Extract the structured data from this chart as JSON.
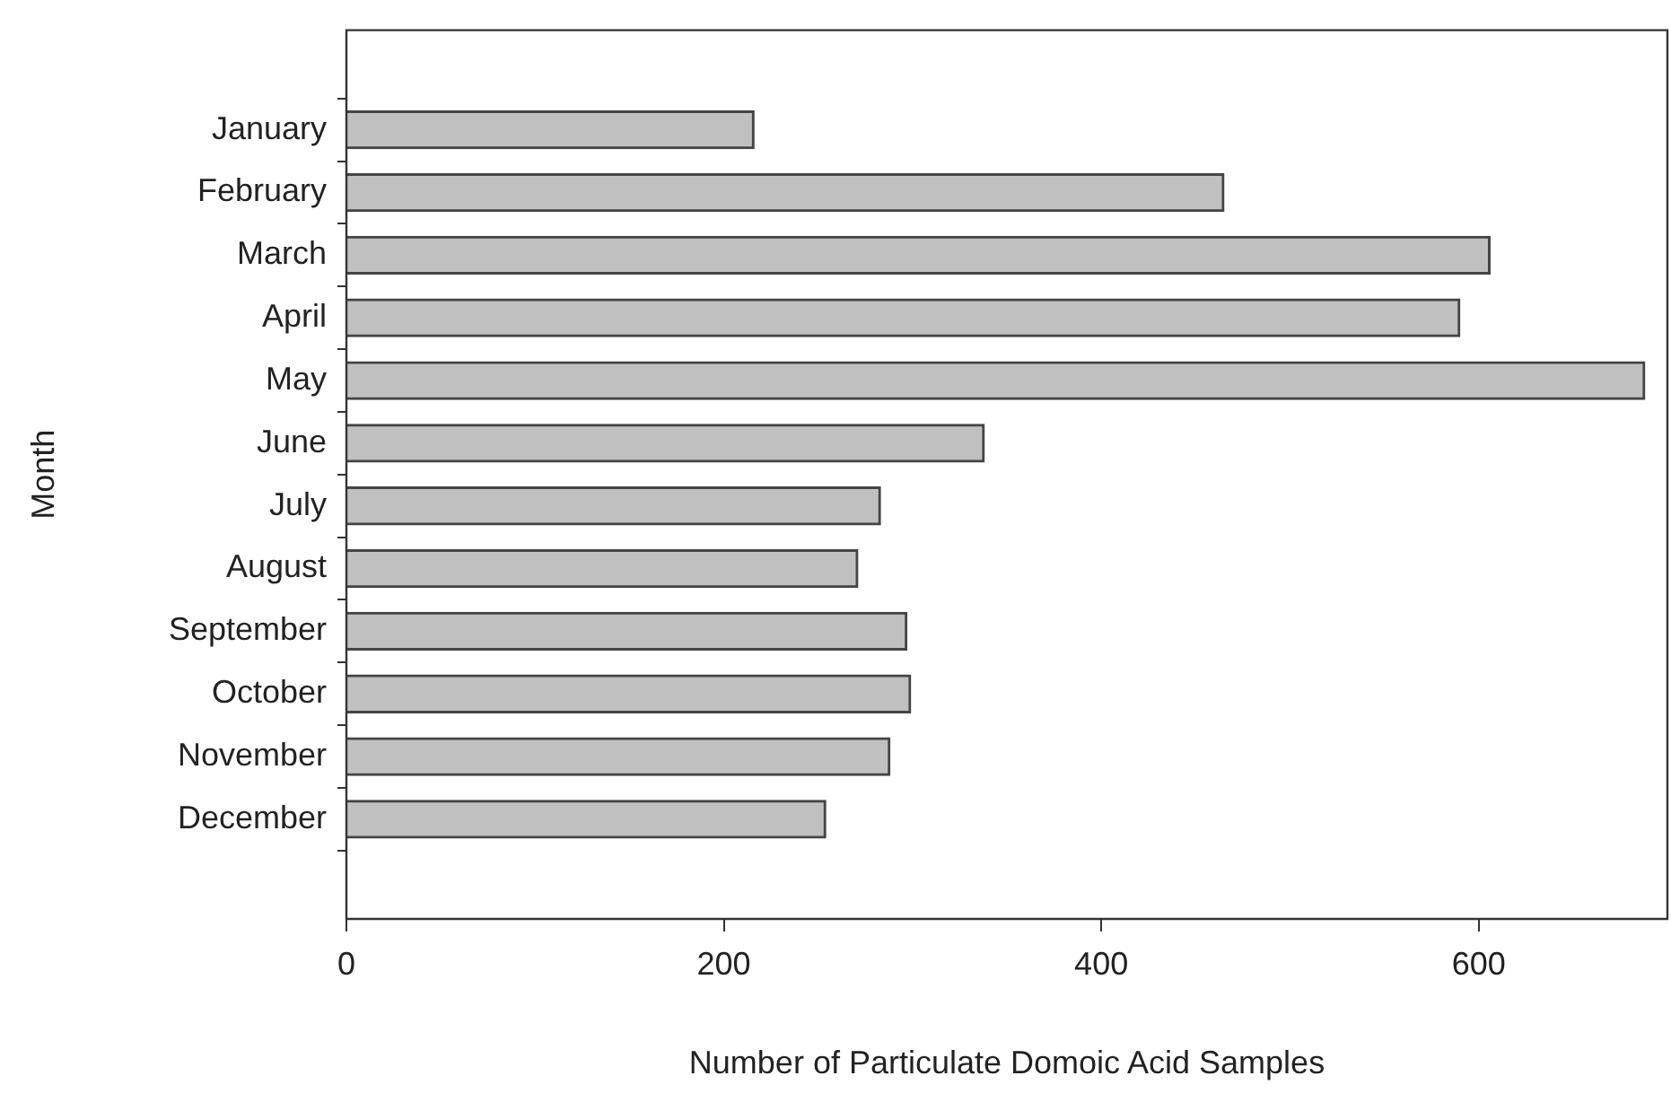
{
  "chart_data": {
    "type": "bar",
    "orientation": "horizontal",
    "xlabel": "Number of Particulate Domoic Acid Samples",
    "ylabel": "Month",
    "categories": [
      "January",
      "February",
      "March",
      "April",
      "May",
      "June",
      "July",
      "August",
      "September",
      "October",
      "November",
      "December"
    ],
    "values": [
      216,
      465,
      606,
      590,
      688,
      338,
      283,
      271,
      297,
      299,
      288,
      254
    ],
    "color": "#c0c0c0",
    "xlim": [
      0,
      700
    ],
    "xticks": [
      0,
      200,
      400,
      600
    ],
    "grid": false,
    "legend": false
  }
}
